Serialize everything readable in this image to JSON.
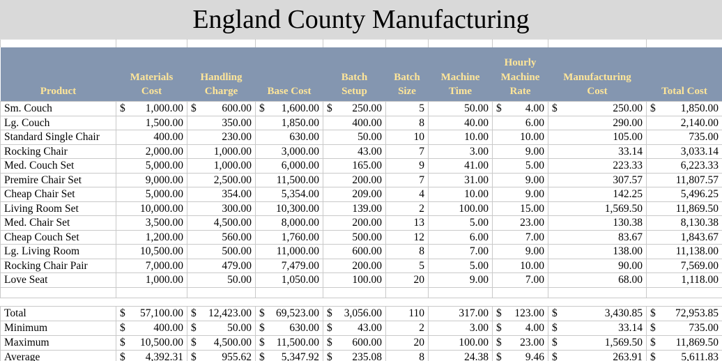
{
  "title": "England County Manufacturing",
  "currency_symbol": "$",
  "colors": {
    "title_bg": "#d9d9d9",
    "header_bg": "#8496b0",
    "header_text": "#ffe699",
    "gridline": "#c9c9c9",
    "body_text": "#000000"
  },
  "columns": [
    {
      "label": "Product"
    },
    {
      "label": "Materials\nCost"
    },
    {
      "label": "Handling\nCharge"
    },
    {
      "label": "Base Cost"
    },
    {
      "label": "Batch\nSetup"
    },
    {
      "label": "Batch\nSize"
    },
    {
      "label": "Machine\nTime"
    },
    {
      "label": "Hourly\nMachine\nRate"
    },
    {
      "label": "Manufacturing\nCost"
    },
    {
      "label": "Total Cost"
    }
  ],
  "dollar_columns": [
    0,
    1,
    2,
    3,
    6,
    7,
    8
  ],
  "rows": [
    {
      "product": "Sm. Couch",
      "dollars": true,
      "values": [
        "1,000.00",
        "600.00",
        "1,600.00",
        "250.00",
        "5",
        "50.00",
        "4.00",
        "250.00",
        "1,850.00"
      ]
    },
    {
      "product": "Lg. Couch",
      "dollars": false,
      "values": [
        "1,500.00",
        "350.00",
        "1,850.00",
        "400.00",
        "8",
        "40.00",
        "6.00",
        "290.00",
        "2,140.00"
      ]
    },
    {
      "product": "Standard Single Chair",
      "dollars": false,
      "values": [
        "400.00",
        "230.00",
        "630.00",
        "50.00",
        "10",
        "10.00",
        "10.00",
        "105.00",
        "735.00"
      ]
    },
    {
      "product": "Rocking Chair",
      "dollars": false,
      "values": [
        "2,000.00",
        "1,000.00",
        "3,000.00",
        "43.00",
        "7",
        "3.00",
        "9.00",
        "33.14",
        "3,033.14"
      ]
    },
    {
      "product": "Med. Couch Set",
      "dollars": false,
      "values": [
        "5,000.00",
        "1,000.00",
        "6,000.00",
        "165.00",
        "9",
        "41.00",
        "5.00",
        "223.33",
        "6,223.33"
      ]
    },
    {
      "product": "Premire Chair Set",
      "dollars": false,
      "values": [
        "9,000.00",
        "2,500.00",
        "11,500.00",
        "200.00",
        "7",
        "31.00",
        "9.00",
        "307.57",
        "11,807.57"
      ]
    },
    {
      "product": "Cheap Chair Set",
      "dollars": false,
      "values": [
        "5,000.00",
        "354.00",
        "5,354.00",
        "209.00",
        "4",
        "10.00",
        "9.00",
        "142.25",
        "5,496.25"
      ]
    },
    {
      "product": "Living Room Set",
      "dollars": false,
      "values": [
        "10,000.00",
        "300.00",
        "10,300.00",
        "139.00",
        "2",
        "100.00",
        "15.00",
        "1,569.50",
        "11,869.50"
      ]
    },
    {
      "product": "Med. Chair Set",
      "dollars": false,
      "values": [
        "3,500.00",
        "4,500.00",
        "8,000.00",
        "200.00",
        "13",
        "5.00",
        "23.00",
        "130.38",
        "8,130.38"
      ]
    },
    {
      "product": "Cheap Couch Set",
      "dollars": false,
      "values": [
        "1,200.00",
        "560.00",
        "1,760.00",
        "500.00",
        "12",
        "6.00",
        "7.00",
        "83.67",
        "1,843.67"
      ]
    },
    {
      "product": "Lg. Living Room",
      "dollars": false,
      "values": [
        "10,500.00",
        "500.00",
        "11,000.00",
        "600.00",
        "8",
        "7.00",
        "9.00",
        "138.00",
        "11,138.00"
      ]
    },
    {
      "product": "Rocking Chair Pair",
      "dollars": false,
      "values": [
        "7,000.00",
        "479.00",
        "7,479.00",
        "200.00",
        "5",
        "5.00",
        "10.00",
        "90.00",
        "7,569.00"
      ]
    },
    {
      "product": "Love Seat",
      "dollars": false,
      "values": [
        "1,000.00",
        "50.00",
        "1,050.00",
        "100.00",
        "20",
        "9.00",
        "7.00",
        "68.00",
        "1,118.00"
      ]
    }
  ],
  "summary": [
    {
      "label": "Total",
      "dollars": true,
      "values": [
        "57,100.00",
        "12,423.00",
        "69,523.00",
        "3,056.00",
        "110",
        "317.00",
        "123.00",
        "3,430.85",
        "72,953.85"
      ]
    },
    {
      "label": "Minimum",
      "dollars": true,
      "values": [
        "400.00",
        "50.00",
        "630.00",
        "43.00",
        "2",
        "3.00",
        "4.00",
        "33.14",
        "735.00"
      ]
    },
    {
      "label": "Maximum",
      "dollars": true,
      "values": [
        "10,500.00",
        "4,500.00",
        "11,500.00",
        "600.00",
        "20",
        "100.00",
        "23.00",
        "1,569.50",
        "11,869.50"
      ]
    },
    {
      "label": "Average",
      "dollars": true,
      "values": [
        "4,392.31",
        "955.62",
        "5,347.92",
        "235.08",
        "8",
        "24.38",
        "9.46",
        "263.91",
        "5,611.83"
      ]
    }
  ]
}
